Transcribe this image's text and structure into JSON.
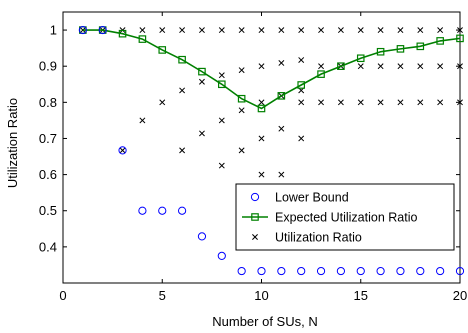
{
  "chart_data": {
    "type": "scatter",
    "xlabel": "Number of SUs, N",
    "ylabel": "Utilization Ratio",
    "xlim": [
      0,
      20
    ],
    "ylim": [
      0.3,
      1.05
    ],
    "xticks": [
      0,
      5,
      10,
      15,
      20
    ],
    "yticks": [
      0.4,
      0.5,
      0.6,
      0.7,
      0.8,
      0.9,
      1
    ],
    "grid": false,
    "legend_position": "bottom-right",
    "series": [
      {
        "name": "Lower Bound",
        "style": "circle-markers",
        "color": "#0000ff",
        "x": [
          1,
          2,
          3,
          4,
          5,
          6,
          7,
          8,
          9,
          10,
          11,
          12,
          13,
          14,
          15,
          16,
          17,
          18,
          19,
          20
        ],
        "y": [
          1,
          1,
          0.667,
          0.5,
          0.5,
          0.5,
          0.429,
          0.375,
          0.333,
          0.333,
          0.333,
          0.333,
          0.333,
          0.333,
          0.333,
          0.333,
          0.333,
          0.333,
          0.333,
          0.333
        ]
      },
      {
        "name": "Expected Utilization Ratio",
        "style": "line-square-markers",
        "color": "#008000",
        "x": [
          1,
          2,
          3,
          4,
          5,
          6,
          7,
          8,
          9,
          10,
          11,
          12,
          13,
          14,
          15,
          16,
          17,
          18,
          19,
          20
        ],
        "y": [
          1,
          1,
          0.99,
          0.975,
          0.945,
          0.918,
          0.885,
          0.85,
          0.81,
          0.783,
          0.818,
          0.848,
          0.878,
          0.9,
          0.922,
          0.94,
          0.948,
          0.955,
          0.97,
          0.977
        ]
      },
      {
        "name": "Utilization Ratio",
        "style": "x-markers",
        "color": "#000000",
        "points": [
          [
            1,
            1
          ],
          [
            2,
            1
          ],
          [
            3,
            1
          ],
          [
            3,
            0.667
          ],
          [
            4,
            1
          ],
          [
            4,
            0.75
          ],
          [
            5,
            1
          ],
          [
            5,
            0.8
          ],
          [
            6,
            1
          ],
          [
            6,
            0.833
          ],
          [
            6,
            0.667
          ],
          [
            7,
            1
          ],
          [
            7,
            0.857
          ],
          [
            7,
            0.714
          ],
          [
            8,
            1
          ],
          [
            8,
            0.875
          ],
          [
            8,
            0.75
          ],
          [
            8,
            0.625
          ],
          [
            9,
            1
          ],
          [
            9,
            0.889
          ],
          [
            9,
            0.778
          ],
          [
            9,
            0.667
          ],
          [
            10,
            1
          ],
          [
            10,
            0.9
          ],
          [
            10,
            0.8
          ],
          [
            10,
            0.7
          ],
          [
            10,
            0.6
          ],
          [
            11,
            1
          ],
          [
            11,
            0.909
          ],
          [
            11,
            0.818
          ],
          [
            11,
            0.727
          ],
          [
            11,
            0.6
          ],
          [
            12,
            1
          ],
          [
            12,
            0.917
          ],
          [
            12,
            0.833
          ],
          [
            12,
            0.8
          ],
          [
            12,
            0.7
          ],
          [
            13,
            1
          ],
          [
            13,
            0.9
          ],
          [
            13,
            0.8
          ],
          [
            14,
            1
          ],
          [
            14,
            0.9
          ],
          [
            14,
            0.8
          ],
          [
            15,
            1
          ],
          [
            15,
            0.9
          ],
          [
            15,
            0.8
          ],
          [
            16,
            1
          ],
          [
            16,
            0.9
          ],
          [
            16,
            0.8
          ],
          [
            17,
            1
          ],
          [
            17,
            0.9
          ],
          [
            17,
            0.8
          ],
          [
            18,
            1
          ],
          [
            18,
            0.9
          ],
          [
            18,
            0.8
          ],
          [
            19,
            1
          ],
          [
            19,
            0.9
          ],
          [
            19,
            0.8
          ],
          [
            20,
            1
          ],
          [
            20,
            0.9
          ],
          [
            20,
            0.8
          ]
        ]
      }
    ]
  }
}
